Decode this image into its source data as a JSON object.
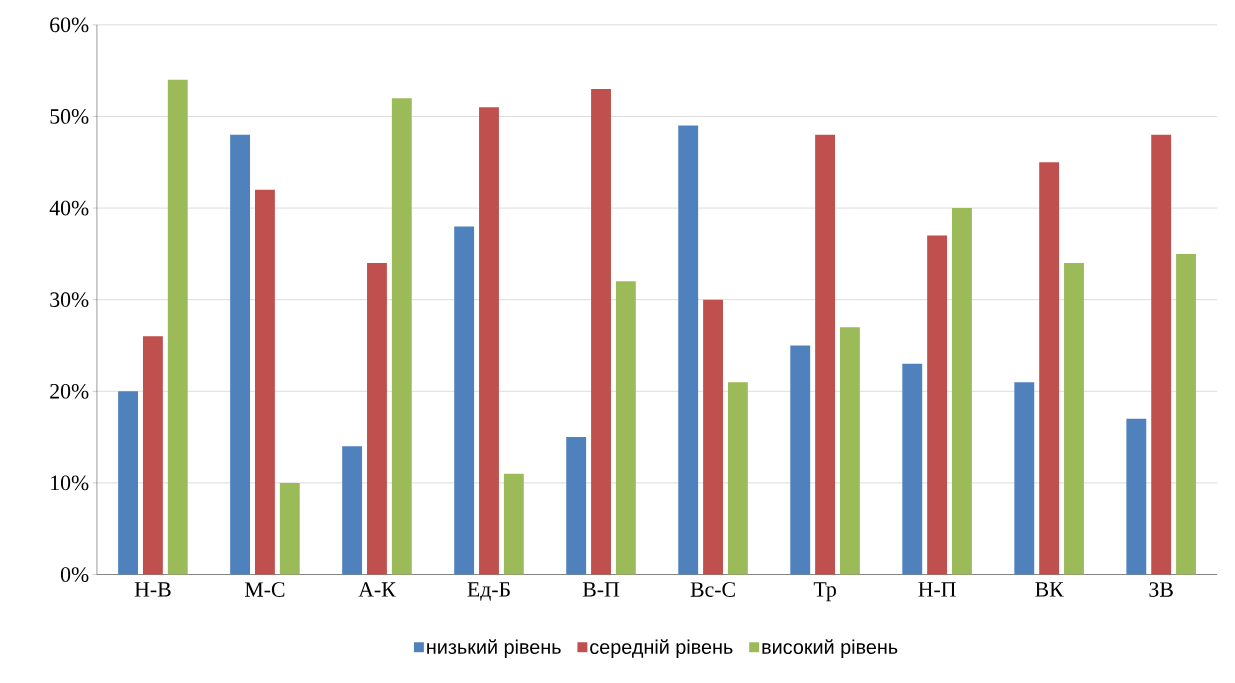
{
  "chart_data": {
    "type": "bar",
    "categories": [
      "Н-В",
      "М-С",
      "А-К",
      "Ед-Б",
      "В-П",
      "Вс-С",
      "Тр",
      "Н-П",
      "ВК",
      "ЗВ"
    ],
    "series": [
      {
        "name": "низький рівень",
        "color": "#4f81bd",
        "values": [
          20,
          48,
          14,
          38,
          15,
          49,
          25,
          23,
          21,
          17
        ]
      },
      {
        "name": "середній рівень",
        "color": "#c0504d",
        "values": [
          26,
          42,
          34,
          51,
          53,
          30,
          48,
          37,
          45,
          48
        ]
      },
      {
        "name": "високий рівень",
        "color": "#9bbb59",
        "values": [
          54,
          10,
          52,
          11,
          32,
          21,
          27,
          40,
          34,
          35
        ]
      }
    ],
    "ylim": [
      0,
      60
    ],
    "yticks": [
      {
        "value": 0,
        "label": "0%"
      },
      {
        "value": 10,
        "label": "10%"
      },
      {
        "value": 20,
        "label": "20%"
      },
      {
        "value": 30,
        "label": "30%"
      },
      {
        "value": 40,
        "label": "40%"
      },
      {
        "value": 50,
        "label": "50%"
      },
      {
        "value": 60,
        "label": "60%"
      }
    ],
    "grid": "y",
    "legend": "bottom"
  }
}
